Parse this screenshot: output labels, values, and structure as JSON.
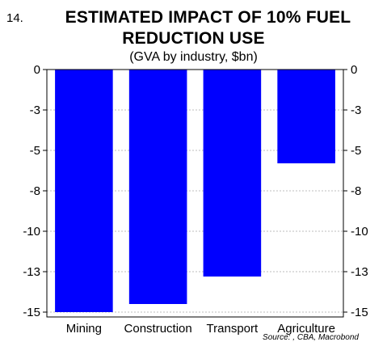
{
  "figure": {
    "number": "14.",
    "title_line1": "ESTIMATED IMPACT OF 10% FUEL",
    "title_line2": "REDUCTION USE",
    "subtitle": "(GVA by industry, $bn)",
    "source": "Source: , CBA, Macrobond"
  },
  "chart_data": {
    "type": "bar",
    "title": "ESTIMATED IMPACT OF 10% FUEL REDUCTION USE",
    "subtitle": "(GVA by industry, $bn)",
    "categories": [
      "Mining",
      "Construction",
      "Transport",
      "Agriculture"
    ],
    "values": [
      -15,
      -14.5,
      -12.8,
      -5.8
    ],
    "ylim": [
      -15.3,
      0
    ],
    "yticks": [
      0,
      -2.5,
      -5,
      -7.5,
      -10,
      -12.5,
      -15
    ],
    "ytick_labels": [
      "0",
      "-3",
      "-5",
      "-8",
      "-10",
      "-13",
      "-15"
    ],
    "grid": true,
    "bar_color": "#0000ff",
    "axes": "both-sides"
  }
}
